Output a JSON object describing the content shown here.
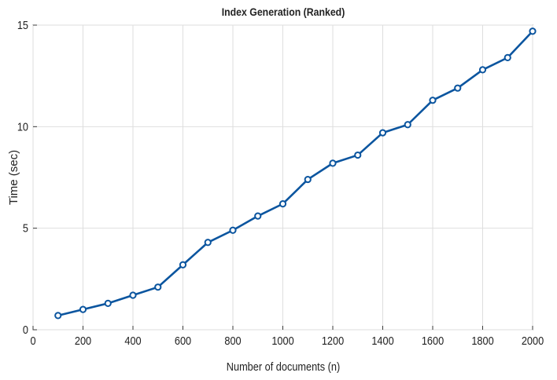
{
  "chart_data": {
    "type": "line",
    "title": "Index Generation (Ranked)",
    "xlabel": "Number of documents (n)",
    "ylabel": "Time (sec)",
    "xlim": [
      0,
      2000
    ],
    "ylim": [
      0,
      15
    ],
    "xticks": [
      0,
      200,
      400,
      600,
      800,
      1000,
      1200,
      1400,
      1600,
      1800,
      2000
    ],
    "yticks": [
      0,
      5,
      10,
      15
    ],
    "grid": true,
    "legend": "none",
    "marker": "circle",
    "color": "#0b559f",
    "series": [
      {
        "x": [
          100,
          200,
          300,
          400,
          500,
          600,
          700,
          800,
          900,
          1000,
          1100,
          1200,
          1300,
          1400,
          1500,
          1600,
          1700,
          1800,
          1900,
          2000
        ],
        "values": [
          0.7,
          1.0,
          1.3,
          1.7,
          2.1,
          3.2,
          4.3,
          4.9,
          5.6,
          6.2,
          7.4,
          8.2,
          8.6,
          9.7,
          10.1,
          11.3,
          11.9,
          12.8,
          13.4,
          14.7
        ]
      }
    ]
  }
}
